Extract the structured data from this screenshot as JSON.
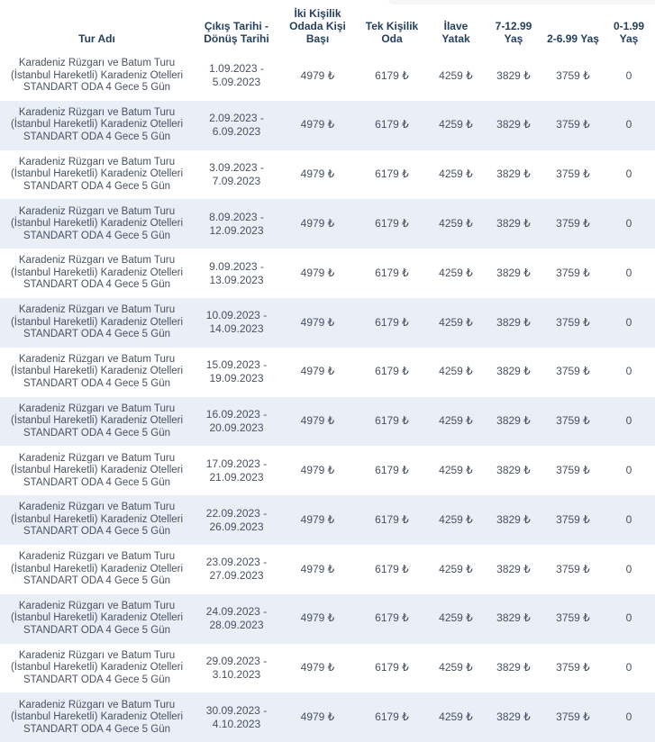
{
  "colors": {
    "header_text": "#24405e",
    "body_text": "#47525f",
    "row_alt_bg": "#e9eef7",
    "page_bg": "#ffffff"
  },
  "currency_symbol": "₺",
  "table": {
    "columns": [
      {
        "key": "tour",
        "label": "Tur Adı"
      },
      {
        "key": "dates",
        "label": "Çıkış Tarihi - Dönüş Tarihi"
      },
      {
        "key": "double",
        "label": "İki Kişilik Odada Kişi Başı"
      },
      {
        "key": "single",
        "label": "Tek Kişilik Oda"
      },
      {
        "key": "extra_bed",
        "label": "İlave Yatak"
      },
      {
        "key": "age_7_12",
        "label": "7-12.99 Yaş"
      },
      {
        "key": "age_2_6",
        "label": "2-6.99 Yaş"
      },
      {
        "key": "age_0_1",
        "label": "0-1.99 Yaş"
      }
    ],
    "rows": [
      {
        "tour": "Karadeniz Rüzgarı ve Batum Turu (İstanbul Hareketli) Karadeniz Otelleri STANDART ODA 4 Gece 5 Gün",
        "dates": "1.09.2023 - 5.09.2023",
        "double": "4979 ₺",
        "single": "6179 ₺",
        "extra_bed": "4259 ₺",
        "age_7_12": "3829 ₺",
        "age_2_6": "3759 ₺",
        "age_0_1": "0"
      },
      {
        "tour": "Karadeniz Rüzgarı ve Batum Turu (İstanbul Hareketli) Karadeniz Otelleri STANDART ODA 4 Gece 5 Gün",
        "dates": "2.09.2023 - 6.09.2023",
        "double": "4979 ₺",
        "single": "6179 ₺",
        "extra_bed": "4259 ₺",
        "age_7_12": "3829 ₺",
        "age_2_6": "3759 ₺",
        "age_0_1": "0"
      },
      {
        "tour": "Karadeniz Rüzgarı ve Batum Turu (İstanbul Hareketli) Karadeniz Otelleri STANDART ODA 4 Gece 5 Gün",
        "dates": "3.09.2023 - 7.09.2023",
        "double": "4979 ₺",
        "single": "6179 ₺",
        "extra_bed": "4259 ₺",
        "age_7_12": "3829 ₺",
        "age_2_6": "3759 ₺",
        "age_0_1": "0"
      },
      {
        "tour": "Karadeniz Rüzgarı ve Batum Turu (İstanbul Hareketli) Karadeniz Otelleri STANDART ODA 4 Gece 5 Gün",
        "dates": "8.09.2023 - 12.09.2023",
        "double": "4979 ₺",
        "single": "6179 ₺",
        "extra_bed": "4259 ₺",
        "age_7_12": "3829 ₺",
        "age_2_6": "3759 ₺",
        "age_0_1": "0"
      },
      {
        "tour": "Karadeniz Rüzgarı ve Batum Turu (İstanbul Hareketli) Karadeniz Otelleri STANDART ODA 4 Gece 5 Gün",
        "dates": "9.09.2023 - 13.09.2023",
        "double": "4979 ₺",
        "single": "6179 ₺",
        "extra_bed": "4259 ₺",
        "age_7_12": "3829 ₺",
        "age_2_6": "3759 ₺",
        "age_0_1": "0"
      },
      {
        "tour": "Karadeniz Rüzgarı ve Batum Turu (İstanbul Hareketli) Karadeniz Otelleri STANDART ODA 4 Gece 5 Gün",
        "dates": "10.09.2023 - 14.09.2023",
        "double": "4979 ₺",
        "single": "6179 ₺",
        "extra_bed": "4259 ₺",
        "age_7_12": "3829 ₺",
        "age_2_6": "3759 ₺",
        "age_0_1": "0"
      },
      {
        "tour": "Karadeniz Rüzgarı ve Batum Turu (İstanbul Hareketli) Karadeniz Otelleri STANDART ODA 4 Gece 5 Gün",
        "dates": "15.09.2023 - 19.09.2023",
        "double": "4979 ₺",
        "single": "6179 ₺",
        "extra_bed": "4259 ₺",
        "age_7_12": "3829 ₺",
        "age_2_6": "3759 ₺",
        "age_0_1": "0"
      },
      {
        "tour": "Karadeniz Rüzgarı ve Batum Turu (İstanbul Hareketli) Karadeniz Otelleri STANDART ODA 4 Gece 5 Gün",
        "dates": "16.09.2023 - 20.09.2023",
        "double": "4979 ₺",
        "single": "6179 ₺",
        "extra_bed": "4259 ₺",
        "age_7_12": "3829 ₺",
        "age_2_6": "3759 ₺",
        "age_0_1": "0"
      },
      {
        "tour": "Karadeniz Rüzgarı ve Batum Turu (İstanbul Hareketli) Karadeniz Otelleri STANDART ODA 4 Gece 5 Gün",
        "dates": "17.09.2023 - 21.09.2023",
        "double": "4979 ₺",
        "single": "6179 ₺",
        "extra_bed": "4259 ₺",
        "age_7_12": "3829 ₺",
        "age_2_6": "3759 ₺",
        "age_0_1": "0"
      },
      {
        "tour": "Karadeniz Rüzgarı ve Batum Turu (İstanbul Hareketli) Karadeniz Otelleri STANDART ODA 4 Gece 5 Gün",
        "dates": "22.09.2023 - 26.09.2023",
        "double": "4979 ₺",
        "single": "6179 ₺",
        "extra_bed": "4259 ₺",
        "age_7_12": "3829 ₺",
        "age_2_6": "3759 ₺",
        "age_0_1": "0"
      },
      {
        "tour": "Karadeniz Rüzgarı ve Batum Turu (İstanbul Hareketli) Karadeniz Otelleri STANDART ODA 4 Gece 5 Gün",
        "dates": "23.09.2023 - 27.09.2023",
        "double": "4979 ₺",
        "single": "6179 ₺",
        "extra_bed": "4259 ₺",
        "age_7_12": "3829 ₺",
        "age_2_6": "3759 ₺",
        "age_0_1": "0"
      },
      {
        "tour": "Karadeniz Rüzgarı ve Batum Turu (İstanbul Hareketli) Karadeniz Otelleri STANDART ODA 4 Gece 5 Gün",
        "dates": "24.09.2023 - 28.09.2023",
        "double": "4979 ₺",
        "single": "6179 ₺",
        "extra_bed": "4259 ₺",
        "age_7_12": "3829 ₺",
        "age_2_6": "3759 ₺",
        "age_0_1": "0"
      },
      {
        "tour": "Karadeniz Rüzgarı ve Batum Turu (İstanbul Hareketli) Karadeniz Otelleri STANDART ODA 4 Gece 5 Gün",
        "dates": "29.09.2023 - 3.10.2023",
        "double": "4979 ₺",
        "single": "6179 ₺",
        "extra_bed": "4259 ₺",
        "age_7_12": "3829 ₺",
        "age_2_6": "3759 ₺",
        "age_0_1": "0"
      },
      {
        "tour": "Karadeniz Rüzgarı ve Batum Turu (İstanbul Hareketli) Karadeniz Otelleri STANDART ODA 4 Gece 5 Gün",
        "dates": "30.09.2023 - 4.10.2023",
        "double": "4979 ₺",
        "single": "6179 ₺",
        "extra_bed": "4259 ₺",
        "age_7_12": "3829 ₺",
        "age_2_6": "3759 ₺",
        "age_0_1": "0"
      }
    ]
  }
}
